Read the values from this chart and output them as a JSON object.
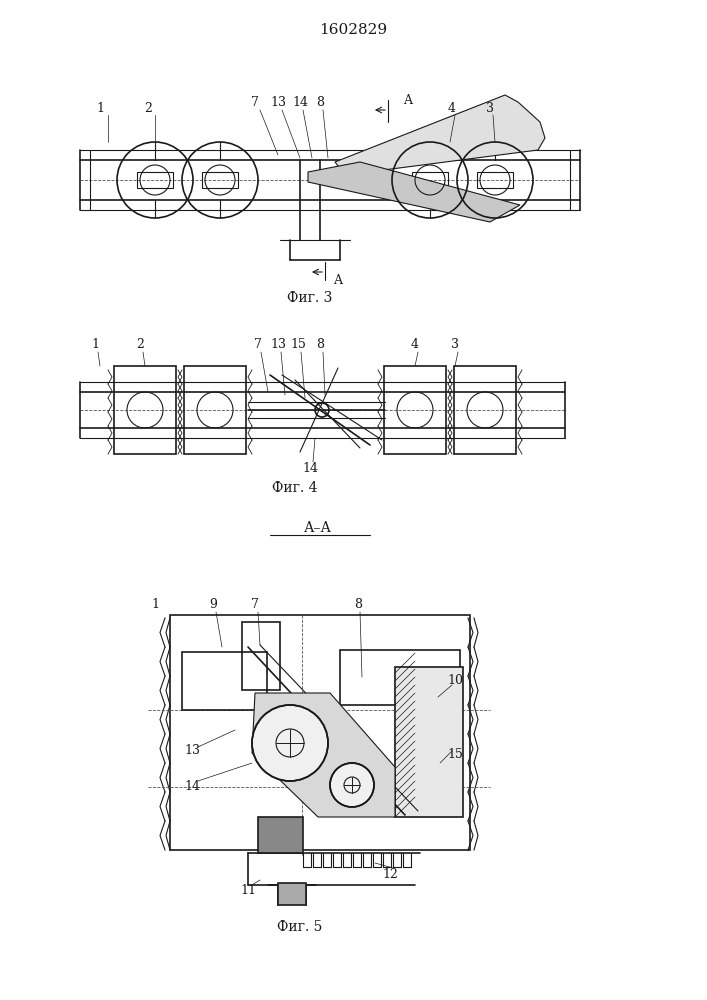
{
  "title": "1602829",
  "title_fontsize": 11,
  "fig3_label": "Фиг. 3",
  "fig4_label": "Фиг. 4",
  "fig5_label": "Фиг. 5",
  "line_color": "#1a1a1a",
  "bg_color": "#ffffff",
  "label_fontsize": 9,
  "fig_label_fontsize": 10
}
